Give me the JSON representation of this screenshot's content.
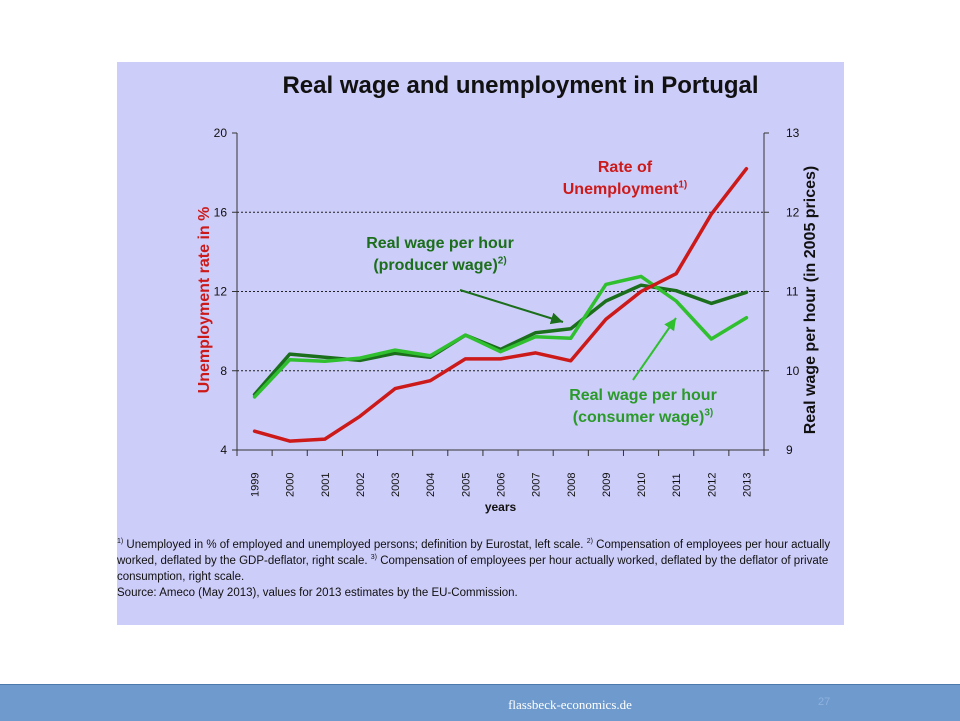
{
  "chart_data": {
    "type": "line",
    "title": "Real wage and unemployment in Portugal",
    "xlabel": "years",
    "ylabel_left": "Unemployment rate in %",
    "ylabel_right": "Real wage per hour (in 2005 prices)",
    "ylim_left": [
      4,
      20
    ],
    "ylim_right": [
      9,
      13
    ],
    "yticks_left": [
      "4",
      "8",
      "12",
      "16",
      "20"
    ],
    "yticks_right": [
      "9",
      "10",
      "11",
      "12",
      "13"
    ],
    "grid": "horizontal dotted",
    "categories": [
      "1999",
      "2000",
      "2001",
      "2002",
      "2003",
      "2004",
      "2005",
      "2006",
      "2007",
      "2008",
      "2009",
      "2010",
      "2011",
      "2012",
      "2013"
    ],
    "series": [
      {
        "name": "Rate of Unemployment",
        "axis": "left",
        "color": "#cc1a1a",
        "values": [
          4.95,
          4.45,
          4.55,
          5.7,
          7.1,
          7.5,
          8.6,
          8.6,
          8.9,
          8.5,
          10.6,
          12.0,
          12.9,
          15.9,
          18.2
        ]
      },
      {
        "name": "Real wage per hour (producer wage)",
        "axis": "right",
        "color": "#1b6e1b",
        "values": [
          9.7,
          10.21,
          10.17,
          10.13,
          10.22,
          10.17,
          10.45,
          10.27,
          10.48,
          10.53,
          10.88,
          11.08,
          11.01,
          10.85,
          10.99
        ]
      },
      {
        "name": "Real wage per hour (consumer wage)",
        "axis": "right",
        "color": "#2fbf2f",
        "values": [
          9.67,
          10.14,
          10.12,
          10.16,
          10.26,
          10.19,
          10.45,
          10.24,
          10.43,
          10.41,
          11.09,
          11.19,
          10.88,
          10.4,
          10.67
        ]
      }
    ]
  },
  "annotations": {
    "unemployment": {
      "line1": "Rate of",
      "line2": "Unemployment",
      "sup": "1)"
    },
    "producer": {
      "line1": "Real wage per hour",
      "line2": "(producer wage)",
      "sup": "2)"
    },
    "consumer": {
      "line1": "Real wage per hour",
      "line2": "(consumer wage)",
      "sup": "3)"
    }
  },
  "footnotes": {
    "n1_mark": "1)",
    "n1": " Unemployed in % of employed and unemployed persons; definition by Eurostat, left scale. ",
    "n2_mark": "2)",
    "n2": " Compensation of employees per hour actually worked, deflated by the GDP-deflator, right scale. ",
    "n3_mark": "3)",
    "n3": " Compensation of employees per hour actually worked, deflated by the deflator of private consumption, right scale.",
    "source": "Source: Ameco (May 2013), values for 2013 estimates by the EU-Commission."
  },
  "footer": {
    "site": "flassbeck-economics.de",
    "page": "27"
  }
}
